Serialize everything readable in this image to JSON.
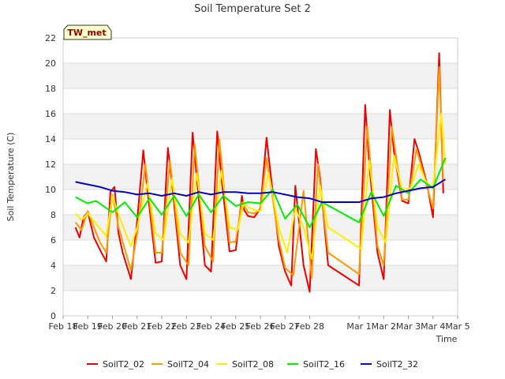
{
  "chart_data": {
    "type": "line",
    "title": "Soil Temperature Set 2",
    "xlabel": "Time",
    "ylabel": "Soil Temperature (C)",
    "badge": "TW_met",
    "ylim": [
      0,
      22
    ],
    "yticks": [
      0,
      2,
      4,
      6,
      8,
      10,
      12,
      14,
      16,
      18,
      20,
      22
    ],
    "xlim": [
      "Feb 18",
      "Mar 5"
    ],
    "xticks": [
      "Feb 18",
      "Feb 19",
      "Feb 20",
      "Feb 21",
      "Feb 22",
      "Feb 23",
      "Feb 24",
      "Feb 25",
      "Feb 26",
      "Feb 27",
      "Feb 28",
      "Mar 1",
      "Mar 2",
      "Mar 3",
      "Mar 4",
      "Mar 5"
    ],
    "grid": "horizontal bands",
    "legend_position": "bottom",
    "series": [
      {
        "name": "SoilT2_02",
        "color": "#ee0000",
        "x": [
          "Feb 18 12:00",
          "Feb 18 16:00",
          "Feb 18 20:00",
          "Feb 19 00:00",
          "Feb 19 06:00",
          "Feb 19 12:00",
          "Feb 19 18:00",
          "Feb 19 22:00",
          "Feb 20 02:00",
          "Feb 20 06:00",
          "Feb 20 10:00",
          "Feb 20 18:00",
          "Feb 21 00:00",
          "Feb 21 06:00",
          "Feb 21 10:00",
          "Feb 21 18:00",
          "Feb 22 00:00",
          "Feb 22 06:00",
          "Feb 22 10:00",
          "Feb 22 18:00",
          "Feb 23 00:00",
          "Feb 23 06:00",
          "Feb 23 10:00",
          "Feb 23 18:00",
          "Feb 24 00:00",
          "Feb 24 06:00",
          "Feb 24 10:00",
          "Feb 24 18:00",
          "Feb 25 00:00",
          "Feb 25 06:00",
          "Feb 25 08:00",
          "Feb 25 12:00",
          "Feb 25 18:00",
          "Feb 26 00:00",
          "Feb 26 06:00",
          "Feb 26 18:00",
          "Feb 27 00:00",
          "Feb 27 06:00",
          "Feb 27 10:00",
          "Feb 27 18:00",
          "Feb 28 00:00",
          "Feb 28 06:00",
          "Feb 28 10:00",
          "Feb 28 18:00",
          "Mar 1 00:00",
          "Mar 1 06:00",
          "Mar 1 10:00",
          "Mar 1 18:00",
          "Mar 2 00:00",
          "Mar 2 06:00",
          "Mar 2 10:00",
          "Mar 2 18:00",
          "Mar 3 00:00",
          "Mar 3 06:00",
          "Mar 3 10:00",
          "Mar 3 18:00",
          "Mar 4 00:00",
          "Mar 4 06:00",
          "Mar 4 10:00"
        ],
        "y": [
          7.0,
          6.2,
          7.8,
          8.2,
          6.2,
          5.2,
          4.3,
          9.8,
          10.2,
          6.5,
          5.0,
          2.9,
          7.5,
          13.1,
          10.0,
          4.2,
          4.3,
          13.3,
          10.5,
          4.0,
          2.9,
          14.5,
          11.0,
          4.0,
          3.5,
          14.6,
          11.0,
          5.1,
          5.2,
          9.5,
          8.4,
          7.9,
          7.8,
          8.5,
          14.1,
          5.5,
          3.5,
          2.4,
          10.3,
          4.0,
          1.9,
          13.2,
          11.0,
          4.0,
          2.4,
          16.7,
          12.0,
          5.0,
          2.9,
          16.3,
          13.0,
          9.1,
          8.9,
          14.0,
          13.0,
          10.5,
          7.8,
          20.8,
          9.7
        ]
      },
      {
        "name": "SoilT2_04",
        "color": "#ff9900",
        "x": [
          "Feb 18 12:00",
          "Feb 18 18:00",
          "Feb 19 00:00",
          "Feb 19 06:00",
          "Feb 19 12:00",
          "Feb 19 18:00",
          "Feb 20 00:00",
          "Feb 20 06:00",
          "Feb 20 18:00",
          "Feb 21 00:00",
          "Feb 21 08:00",
          "Feb 21 18:00",
          "Feb 22 00:00",
          "Feb 22 08:00",
          "Feb 22 18:00",
          "Feb 23 02:00",
          "Feb 23 08:00",
          "Feb 23 18:00",
          "Feb 24 02:00",
          "Feb 24 08:00",
          "Feb 24 18:00",
          "Feb 25 00:00",
          "Feb 25 06:00",
          "Feb 25 12:00",
          "Feb 25 18:00",
          "Feb 26 00:00",
          "Feb 26 06:00",
          "Feb 26 18:00",
          "Feb 27 00:00",
          "Feb 27 08:00",
          "Feb 27 18:00",
          "Feb 28 02:00",
          "Feb 28 08:00",
          "Feb 28 18:00",
          "Mar 1 00:00",
          "Mar 1 08:00",
          "Mar 1 18:00",
          "Mar 2 00:00",
          "Mar 2 08:00",
          "Mar 2 18:00",
          "Mar 3 00:00",
          "Mar 3 08:00",
          "Mar 3 18:00",
          "Mar 4 00:00",
          "Mar 4 06:00",
          "Mar 4 10:00"
        ],
        "y": [
          7.4,
          6.8,
          8.3,
          7.0,
          5.8,
          5.0,
          9.6,
          7.0,
          3.6,
          6.5,
          12.0,
          5.0,
          5.0,
          12.3,
          5.0,
          4.0,
          13.6,
          5.5,
          4.3,
          14.0,
          5.8,
          5.9,
          9.0,
          8.2,
          8.1,
          8.4,
          12.5,
          6.0,
          3.8,
          3.2,
          9.9,
          3.0,
          12.0,
          5.0,
          3.3,
          15.0,
          5.5,
          4.0,
          15.0,
          9.2,
          9.2,
          13.2,
          10.3,
          8.5,
          19.7,
          10.5
        ]
      },
      {
        "name": "SoilT2_08",
        "color": "#ffee00",
        "x": [
          "Feb 18 12:00",
          "Feb 18 18:00",
          "Feb 19 00:00",
          "Feb 19 06:00",
          "Feb 19 18:00",
          "Feb 20 00:00",
          "Feb 20 06:00",
          "Feb 20 18:00",
          "Feb 21 00:00",
          "Feb 21 10:00",
          "Feb 21 18:00",
          "Feb 22 02:00",
          "Feb 22 10:00",
          "Feb 22 18:00",
          "Feb 23 02:00",
          "Feb 23 10:00",
          "Feb 23 18:00",
          "Feb 24 02:00",
          "Feb 24 10:00",
          "Feb 24 18:00",
          "Feb 25 02:00",
          "Feb 25 08:00",
          "Feb 25 12:00",
          "Feb 25 18:00",
          "Feb 26 00:00",
          "Feb 26 08:00",
          "Feb 26 18:00",
          "Feb 27 02:00",
          "Feb 27 10:00",
          "Feb 27 18:00",
          "Feb 28 02:00",
          "Feb 28 10:00",
          "Feb 28 18:00",
          "Mar 1 02:00",
          "Mar 1 10:00",
          "Mar 1 18:00",
          "Mar 2 02:00",
          "Mar 2 10:00",
          "Mar 2 18:00",
          "Mar 3 02:00",
          "Mar 3 10:00",
          "Mar 3 18:00",
          "Mar 4 00:00",
          "Mar 4 08:00",
          "Mar 4 12:00"
        ],
        "y": [
          8.1,
          7.6,
          8.1,
          7.5,
          6.3,
          9.5,
          8.0,
          5.5,
          7.0,
          10.5,
          6.5,
          6.0,
          10.9,
          6.5,
          5.8,
          11.3,
          6.5,
          6.0,
          11.5,
          7.0,
          6.8,
          9.0,
          8.6,
          8.4,
          8.3,
          11.3,
          7.0,
          5.0,
          8.5,
          7.0,
          4.5,
          10.3,
          7.0,
          5.3,
          12.3,
          7.0,
          5.8,
          12.7,
          10.0,
          10.1,
          12.0,
          10.5,
          10.2,
          16.0,
          12.0
        ]
      },
      {
        "name": "SoilT2_16",
        "color": "#00ee00",
        "x": [
          "Feb 18 12:00",
          "Feb 19 00:00",
          "Feb 19 08:00",
          "Feb 20 00:00",
          "Feb 20 12:00",
          "Feb 21 00:00",
          "Feb 21 12:00",
          "Feb 22 00:00",
          "Feb 22 12:00",
          "Feb 23 00:00",
          "Feb 23 12:00",
          "Feb 24 00:00",
          "Feb 24 12:00",
          "Feb 25 00:00",
          "Feb 25 12:00",
          "Feb 26 00:00",
          "Feb 26 12:00",
          "Feb 27 00:00",
          "Feb 27 12:00",
          "Feb 28 00:00",
          "Feb 28 12:00",
          "Mar 1 00:00",
          "Mar 1 12:00",
          "Mar 2 00:00",
          "Mar 2 12:00",
          "Mar 3 00:00",
          "Mar 3 12:00",
          "Mar 4 00:00",
          "Mar 4 12:00"
        ],
        "y": [
          9.4,
          8.9,
          9.1,
          8.2,
          9.0,
          7.8,
          9.3,
          8.0,
          9.5,
          7.9,
          9.6,
          8.2,
          9.5,
          8.7,
          9.0,
          8.9,
          10.0,
          7.7,
          8.8,
          7.0,
          9.0,
          7.4,
          9.8,
          7.9,
          10.3,
          9.7,
          10.8,
          10.1,
          12.5
        ]
      },
      {
        "name": "SoilT2_32",
        "color": "#0000cc",
        "x": [
          "Feb 18 12:00",
          "Feb 19 00:00",
          "Feb 19 12:00",
          "Feb 20 00:00",
          "Feb 20 12:00",
          "Feb 21 00:00",
          "Feb 21 12:00",
          "Feb 22 00:00",
          "Feb 22 12:00",
          "Feb 23 00:00",
          "Feb 23 12:00",
          "Feb 24 00:00",
          "Feb 24 12:00",
          "Feb 25 00:00",
          "Feb 25 12:00",
          "Feb 26 00:00",
          "Feb 26 12:00",
          "Feb 27 00:00",
          "Feb 27 12:00",
          "Feb 28 00:00",
          "Feb 28 12:00",
          "Mar 1 00:00",
          "Mar 1 12:00",
          "Mar 2 00:00",
          "Mar 2 12:00",
          "Mar 3 00:00",
          "Mar 3 12:00",
          "Mar 4 00:00",
          "Mar 4 12:00"
        ],
        "y": [
          10.6,
          10.4,
          10.2,
          9.9,
          9.8,
          9.6,
          9.7,
          9.5,
          9.7,
          9.5,
          9.8,
          9.6,
          9.8,
          9.8,
          9.7,
          9.7,
          9.8,
          9.6,
          9.4,
          9.3,
          9.0,
          9.0,
          9.3,
          9.4,
          9.7,
          9.9,
          10.1,
          10.2,
          10.8
        ]
      }
    ]
  }
}
